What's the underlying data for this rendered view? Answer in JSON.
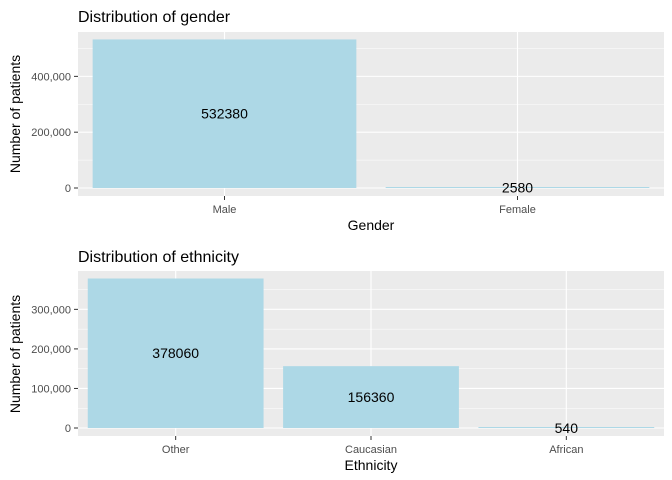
{
  "colors": {
    "panel_background": "#ebebeb",
    "grid_major": "#ffffff",
    "bar_fill": "#add8e6",
    "tick_text": "#4d4d4d",
    "text": "#000000"
  },
  "chart_data": [
    {
      "type": "bar",
      "title": "Distribution of gender",
      "xlabel": "Gender",
      "ylabel": "Number of patients",
      "categories": [
        "Male",
        "Female"
      ],
      "values": [
        532380,
        2580
      ],
      "data_labels": [
        "532380",
        "2580"
      ],
      "yticks": [
        0,
        200000,
        400000
      ],
      "ytick_labels": [
        "0",
        "200,000",
        "400,000"
      ],
      "ylim": [
        0,
        559000
      ],
      "grid": true
    },
    {
      "type": "bar",
      "title": "Distribution of ethnicity",
      "xlabel": "Ethnicity",
      "ylabel": "Number of patients",
      "categories": [
        "Other",
        "Caucasian",
        "African"
      ],
      "values": [
        378060,
        156360,
        540
      ],
      "data_labels": [
        "378060",
        "156360",
        "540"
      ],
      "yticks": [
        0,
        100000,
        200000,
        300000
      ],
      "ytick_labels": [
        "0",
        "100,000",
        "200,000",
        "300,000"
      ],
      "ylim": [
        0,
        397000
      ],
      "grid": true
    }
  ]
}
